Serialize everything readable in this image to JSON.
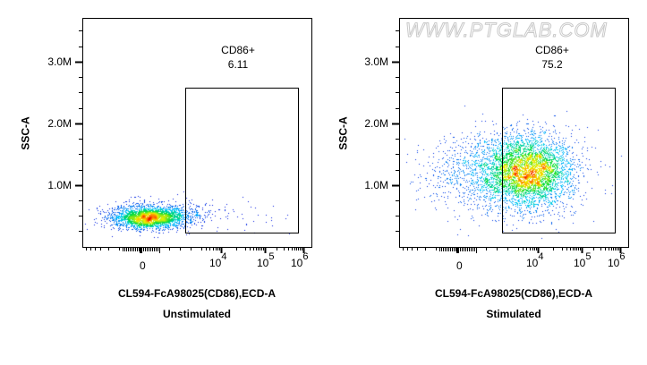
{
  "watermark": "WWW.PTGLAB.COM",
  "panels": [
    {
      "id": "unstimulated",
      "ylabel": "SSC-A",
      "xlabel": "CL594-FcA98025(CD86),ECD-A",
      "subtitle": "Unstimulated",
      "yticks": [
        "3.0M",
        "2.0M",
        "1.0M"
      ],
      "xticks": [
        {
          "base": "0",
          "exp": ""
        },
        {
          "base": "10",
          "exp": "4"
        },
        {
          "base": "10",
          "exp": "5"
        },
        {
          "base": "10",
          "exp": "6"
        }
      ],
      "gate": {
        "name": "CD86+",
        "value": "6.11"
      }
    },
    {
      "id": "stimulated",
      "ylabel": "SSC-A",
      "xlabel": "CL594-FcA98025(CD86),ECD-A",
      "subtitle": "Stimulated",
      "yticks": [
        "3.0M",
        "2.0M",
        "1.0M"
      ],
      "xticks": [
        {
          "base": "0",
          "exp": ""
        },
        {
          "base": "10",
          "exp": "4"
        },
        {
          "base": "10",
          "exp": "5"
        },
        {
          "base": "10",
          "exp": "6"
        }
      ],
      "gate": {
        "name": "CD86+",
        "value": "75.2"
      }
    }
  ],
  "chart_data": [
    {
      "type": "scatter",
      "title": "Unstimulated",
      "xlabel": "CL594-FcA98025(CD86),ECD-A",
      "ylabel": "SSC-A",
      "xscale": "biexponential",
      "x_tick_labels": [
        "0",
        "10^4",
        "10^5",
        "10^6"
      ],
      "y_tick_labels": [
        "1.0M",
        "2.0M",
        "3.0M"
      ],
      "ylim": [
        0,
        3600000
      ],
      "gate": {
        "name": "CD86+",
        "percent": 6.11,
        "x_min_approx": "~3x10^3",
        "x_max_approx": "~8x10^5",
        "y_range": [
          250000,
          2600000
        ]
      },
      "population": {
        "center_x": "~0-10^3",
        "center_y": 450000,
        "y_spread": [
          200000,
          800000
        ],
        "density_colormap": "blue-cyan-green-yellow-red"
      }
    },
    {
      "type": "scatter",
      "title": "Stimulated",
      "xlabel": "CL594-FcA98025(CD86),ECD-A",
      "ylabel": "SSC-A",
      "xscale": "biexponential",
      "x_tick_labels": [
        "0",
        "10^4",
        "10^5",
        "10^6"
      ],
      "y_tick_labels": [
        "1.0M",
        "2.0M",
        "3.0M"
      ],
      "ylim": [
        0,
        3600000
      ],
      "gate": {
        "name": "CD86+",
        "percent": 75.2,
        "x_min_approx": "~3x10^3",
        "x_max_approx": "~8x10^5",
        "y_range": [
          250000,
          2600000
        ]
      },
      "population": {
        "center_x": "~10^4",
        "center_y": 1100000,
        "y_spread": [
          400000,
          1900000
        ],
        "density_colormap": "blue-cyan-green-yellow-red"
      }
    }
  ]
}
